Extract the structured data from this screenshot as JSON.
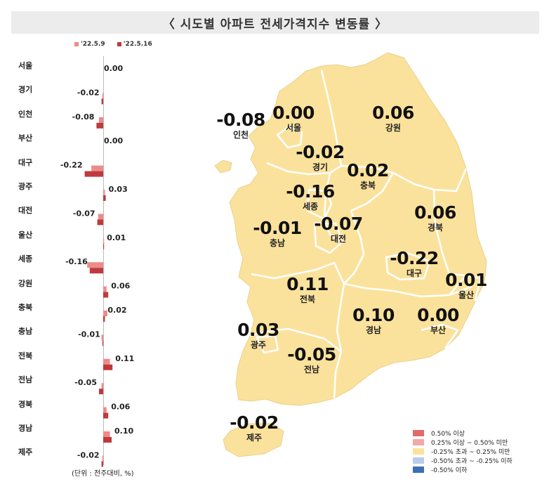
{
  "title": "〈 시도별 아파트 전세가격지수 변동률 〉",
  "unit_note": "(단위 : 전주대비, %)",
  "colors": {
    "prev": "#ef8a8a",
    "curr": "#c0393b",
    "map_fill": "#fbe29c",
    "map_stroke": "#ffffff"
  },
  "chart_data": {
    "type": "bar",
    "orientation": "horizontal",
    "categories": [
      "서울",
      "경기",
      "인천",
      "부산",
      "대구",
      "광주",
      "대전",
      "울산",
      "세종",
      "강원",
      "충북",
      "충남",
      "전북",
      "전남",
      "경북",
      "경남",
      "제주"
    ],
    "series": [
      {
        "name": "'22.5.9",
        "values": [
          0.0,
          -0.01,
          -0.05,
          0.0,
          -0.14,
          0.02,
          -0.06,
          0.01,
          -0.19,
          0.04,
          0.05,
          -0.02,
          0.08,
          -0.02,
          0.04,
          0.08,
          -0.01
        ]
      },
      {
        "name": "'22.5.16",
        "values": [
          0.0,
          -0.02,
          -0.08,
          0.0,
          -0.22,
          0.03,
          -0.07,
          0.01,
          -0.16,
          0.06,
          0.02,
          -0.01,
          0.11,
          -0.05,
          0.06,
          0.1,
          -0.02
        ]
      }
    ],
    "value_labels": [
      "0.00",
      "-0.02",
      "-0.08",
      "0.00",
      "-0.22",
      "0.03",
      "-0.07",
      "0.01",
      "-0.16",
      "0.06",
      "0.02",
      "-0.01",
      "0.11",
      "-0.05",
      "0.06",
      "0.10",
      "-0.02"
    ]
  },
  "map": {
    "regions": [
      {
        "name": "서울",
        "value": "0.00"
      },
      {
        "name": "인천",
        "value": "-0.08"
      },
      {
        "name": "강원",
        "value": "0.06"
      },
      {
        "name": "경기",
        "value": "-0.02"
      },
      {
        "name": "충북",
        "value": "0.02"
      },
      {
        "name": "세종",
        "value": "-0.16"
      },
      {
        "name": "경북",
        "value": "0.06"
      },
      {
        "name": "충남",
        "value": "-0.01"
      },
      {
        "name": "대전",
        "value": "-0.07"
      },
      {
        "name": "대구",
        "value": "-0.22"
      },
      {
        "name": "울산",
        "value": "0.01"
      },
      {
        "name": "전북",
        "value": "0.11"
      },
      {
        "name": "경남",
        "value": "0.10"
      },
      {
        "name": "부산",
        "value": "0.00"
      },
      {
        "name": "광주",
        "value": "0.03"
      },
      {
        "name": "전남",
        "value": "-0.05"
      },
      {
        "name": "제주",
        "value": "-0.02"
      }
    ],
    "legend": [
      {
        "label": "0.50% 이상",
        "color": "#e06a6a"
      },
      {
        "label": "0.25% 이상 ~ 0.50% 미만",
        "color": "#f3a8a8"
      },
      {
        "label": "-0.25% 초과 ~ 0.25% 미만",
        "color": "#fbe29c"
      },
      {
        "label": "-0.50% 초과 ~ -0.25% 이하",
        "color": "#b9cdea"
      },
      {
        "label": "-0.50% 이하",
        "color": "#3d6fb8"
      }
    ]
  }
}
